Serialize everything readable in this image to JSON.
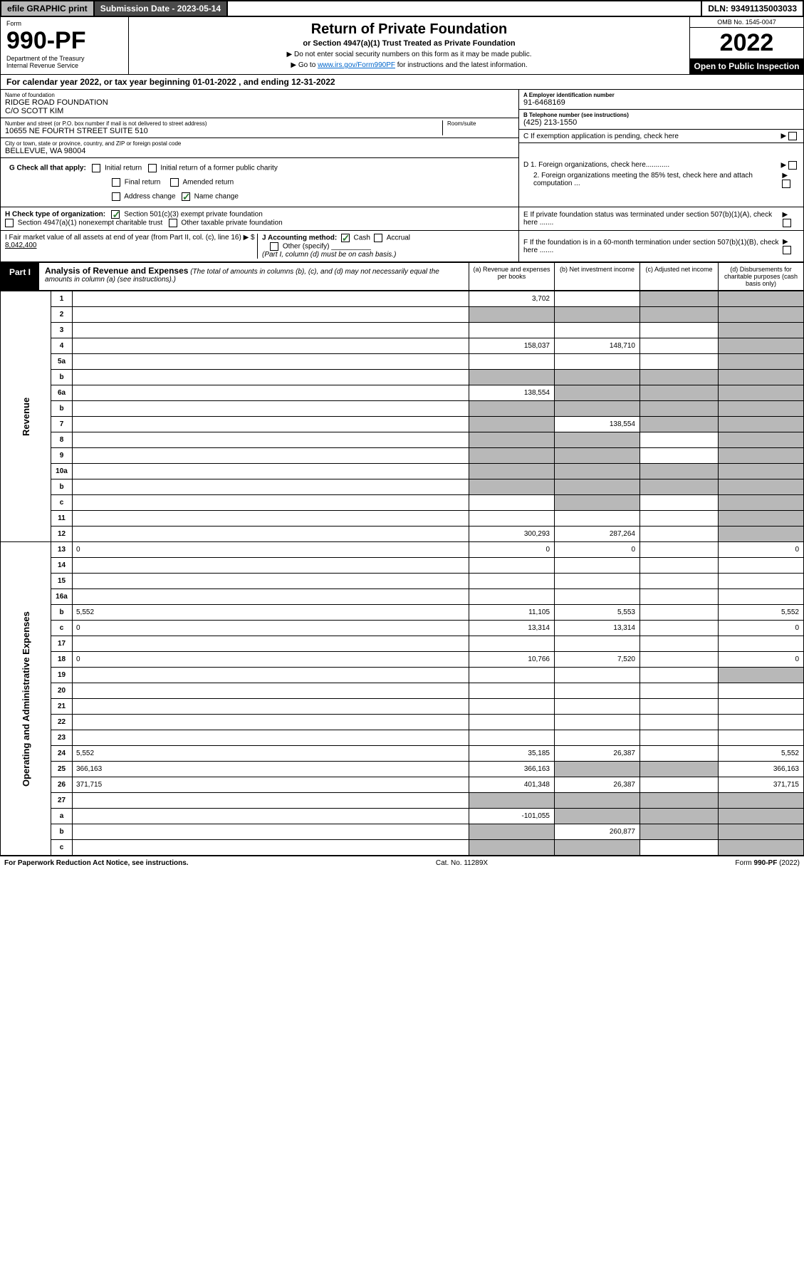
{
  "topbar": {
    "efile": "efile GRAPHIC print",
    "submission": "Submission Date - 2023-05-14",
    "dln": "DLN: 93491135003033"
  },
  "header": {
    "form_label": "Form",
    "form_no": "990-PF",
    "dept": "Department of the Treasury",
    "irs": "Internal Revenue Service",
    "title": "Return of Private Foundation",
    "subtitle": "or Section 4947(a)(1) Trust Treated as Private Foundation",
    "note1": "▶ Do not enter social security numbers on this form as it may be made public.",
    "note2_pre": "▶ Go to ",
    "note2_link": "www.irs.gov/Form990PF",
    "note2_post": " for instructions and the latest information.",
    "omb": "OMB No. 1545-0047",
    "year": "2022",
    "open": "Open to Public Inspection"
  },
  "calendar": "For calendar year 2022, or tax year beginning 01-01-2022              , and ending 12-31-2022",
  "foundation": {
    "name_lbl": "Name of foundation",
    "name": "RIDGE ROAD FOUNDATION",
    "co": "C/O SCOTT KIM",
    "addr_lbl": "Number and street (or P.O. box number if mail is not delivered to street address)",
    "addr": "10655 NE FOURTH STREET SUITE 510",
    "room_lbl": "Room/suite",
    "city_lbl": "City or town, state or province, country, and ZIP or foreign postal code",
    "city": "BELLEVUE, WA  98004",
    "ein_lbl": "A Employer identification number",
    "ein": "91-6468169",
    "phone_lbl": "B Telephone number (see instructions)",
    "phone": "(425) 213-1550",
    "c": "C If exemption application is pending, check here",
    "d1": "D 1. Foreign organizations, check here............",
    "d2": "2. Foreign organizations meeting the 85% test, check here and attach computation ...",
    "e": "E If private foundation status was terminated under section 507(b)(1)(A), check here .......",
    "f": "F If the foundation is in a 60-month termination under section 507(b)(1)(B), check here .......",
    "g": "G Check all that apply:",
    "g_opts": [
      "Initial return",
      "Initial return of a former public charity",
      "Final return",
      "Amended return",
      "Address change",
      "Name change"
    ],
    "h": "H Check type of organization:",
    "h1": "Section 501(c)(3) exempt private foundation",
    "h2": "Section 4947(a)(1) nonexempt charitable trust",
    "h3": "Other taxable private foundation",
    "i_pre": "I Fair market value of all assets at end of year (from Part II, col. (c), line 16) ▶ $ ",
    "i_val": "8,042,400",
    "j": "J Accounting method:",
    "j_cash": "Cash",
    "j_accrual": "Accrual",
    "j_other": "Other (specify)",
    "j_note": "(Part I, column (d) must be on cash basis.)"
  },
  "part1": {
    "tab": "Part I",
    "title": "Analysis of Revenue and Expenses",
    "sub": "(The total of amounts in columns (b), (c), and (d) may not necessarily equal the amounts in column (a) (see instructions).)",
    "col_a": "(a) Revenue and expenses per books",
    "col_b": "(b) Net investment income",
    "col_c": "(c) Adjusted net income",
    "col_d": "(d) Disbursements for charitable purposes (cash basis only)"
  },
  "side": {
    "revenue": "Revenue",
    "expenses": "Operating and Administrative Expenses"
  },
  "rows": [
    {
      "n": "1",
      "d": "",
      "a": "3,702",
      "b": "",
      "c": "",
      "cgrey": true,
      "dgrey": true
    },
    {
      "n": "2",
      "d": "",
      "a": "",
      "b": "",
      "c": "",
      "bgrey": true,
      "cgrey": true,
      "dgrey": true,
      "agrey": true
    },
    {
      "n": "3",
      "d": "",
      "a": "",
      "b": "",
      "c": "",
      "dgrey": true
    },
    {
      "n": "4",
      "d": "",
      "a": "158,037",
      "b": "148,710",
      "c": "",
      "dgrey": true
    },
    {
      "n": "5a",
      "d": "",
      "a": "",
      "b": "",
      "c": "",
      "dgrey": true
    },
    {
      "n": "b",
      "d": "",
      "a": "",
      "b": "",
      "c": "",
      "agrey": true,
      "bgrey": true,
      "cgrey": true,
      "dgrey": true
    },
    {
      "n": "6a",
      "d": "",
      "a": "138,554",
      "b": "",
      "c": "",
      "bgrey": true,
      "cgrey": true,
      "dgrey": true
    },
    {
      "n": "b",
      "d": "",
      "a": "",
      "b": "",
      "c": "",
      "agrey": true,
      "bgrey": true,
      "cgrey": true,
      "dgrey": true
    },
    {
      "n": "7",
      "d": "",
      "a": "",
      "b": "138,554",
      "c": "",
      "agrey": true,
      "cgrey": true,
      "dgrey": true
    },
    {
      "n": "8",
      "d": "",
      "a": "",
      "b": "",
      "c": "",
      "agrey": true,
      "bgrey": true,
      "dgrey": true
    },
    {
      "n": "9",
      "d": "",
      "a": "",
      "b": "",
      "c": "",
      "agrey": true,
      "bgrey": true,
      "dgrey": true
    },
    {
      "n": "10a",
      "d": "",
      "a": "",
      "b": "",
      "c": "",
      "agrey": true,
      "bgrey": true,
      "cgrey": true,
      "dgrey": true
    },
    {
      "n": "b",
      "d": "",
      "a": "",
      "b": "",
      "c": "",
      "agrey": true,
      "bgrey": true,
      "cgrey": true,
      "dgrey": true
    },
    {
      "n": "c",
      "d": "",
      "a": "",
      "b": "",
      "c": "",
      "bgrey": true,
      "dgrey": true
    },
    {
      "n": "11",
      "d": "",
      "a": "",
      "b": "",
      "c": "",
      "dgrey": true
    },
    {
      "n": "12",
      "d": "",
      "a": "300,293",
      "b": "287,264",
      "c": "",
      "dgrey": true
    },
    {
      "n": "13",
      "d": "0",
      "a": "0",
      "b": "0",
      "c": ""
    },
    {
      "n": "14",
      "d": "",
      "a": "",
      "b": "",
      "c": ""
    },
    {
      "n": "15",
      "d": "",
      "a": "",
      "b": "",
      "c": ""
    },
    {
      "n": "16a",
      "d": "",
      "a": "",
      "b": "",
      "c": ""
    },
    {
      "n": "b",
      "d": "5,552",
      "a": "11,105",
      "b": "5,553",
      "c": ""
    },
    {
      "n": "c",
      "d": "0",
      "a": "13,314",
      "b": "13,314",
      "c": ""
    },
    {
      "n": "17",
      "d": "",
      "a": "",
      "b": "",
      "c": ""
    },
    {
      "n": "18",
      "d": "0",
      "a": "10,766",
      "b": "7,520",
      "c": ""
    },
    {
      "n": "19",
      "d": "",
      "a": "",
      "b": "",
      "c": "",
      "dgrey": true
    },
    {
      "n": "20",
      "d": "",
      "a": "",
      "b": "",
      "c": ""
    },
    {
      "n": "21",
      "d": "",
      "a": "",
      "b": "",
      "c": ""
    },
    {
      "n": "22",
      "d": "",
      "a": "",
      "b": "",
      "c": ""
    },
    {
      "n": "23",
      "d": "",
      "a": "",
      "b": "",
      "c": ""
    },
    {
      "n": "24",
      "d": "5,552",
      "a": "35,185",
      "b": "26,387",
      "c": ""
    },
    {
      "n": "25",
      "d": "366,163",
      "a": "366,163",
      "b": "",
      "c": "",
      "bgrey": true,
      "cgrey": true
    },
    {
      "n": "26",
      "d": "371,715",
      "a": "401,348",
      "b": "26,387",
      "c": ""
    },
    {
      "n": "27",
      "d": "",
      "a": "",
      "b": "",
      "c": "",
      "agrey": true,
      "bgrey": true,
      "cgrey": true,
      "dgrey": true
    },
    {
      "n": "a",
      "d": "",
      "a": "-101,055",
      "b": "",
      "c": "",
      "bgrey": true,
      "cgrey": true,
      "dgrey": true
    },
    {
      "n": "b",
      "d": "",
      "a": "",
      "b": "260,877",
      "c": "",
      "agrey": true,
      "cgrey": true,
      "dgrey": true
    },
    {
      "n": "c",
      "d": "",
      "a": "",
      "b": "",
      "c": "",
      "agrey": true,
      "bgrey": true,
      "dgrey": true
    }
  ],
  "footer": {
    "left": "For Paperwork Reduction Act Notice, see instructions.",
    "mid": "Cat. No. 11289X",
    "right": "Form 990-PF (2022)"
  }
}
